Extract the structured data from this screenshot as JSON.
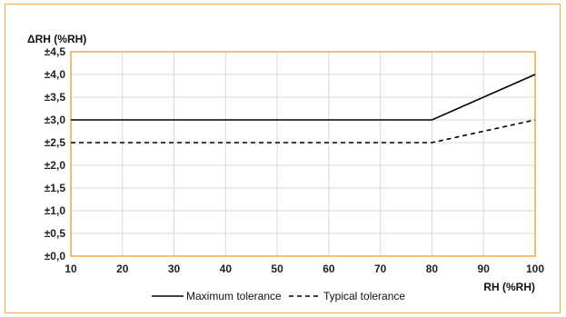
{
  "chart_data": {
    "type": "line",
    "ylabel": "ΔRH (%RH)",
    "xlabel": "RH (%RH)",
    "x": [
      10,
      80,
      100
    ],
    "xlim": [
      10,
      100
    ],
    "xticks": [
      10,
      20,
      30,
      40,
      50,
      60,
      70,
      80,
      90,
      100
    ],
    "ylim": [
      0,
      4.5
    ],
    "yticks": [
      0,
      0.5,
      1.0,
      1.5,
      2.0,
      2.5,
      3.0,
      3.5,
      4.0,
      4.5
    ],
    "ytick_labels": [
      "±0,0",
      "±0,5",
      "±1,0",
      "±1,5",
      "±2,0",
      "±2,5",
      "±3,0",
      "±3,5",
      "±4,0",
      "±4,5"
    ],
    "grid": true,
    "legend_position": "bottom",
    "series": [
      {
        "name": "Maximum tolerance",
        "values": [
          3.0,
          3.0,
          4.0
        ],
        "style": "solid",
        "color": "#000000"
      },
      {
        "name": "Typical tolerance",
        "values": [
          2.5,
          2.5,
          3.0
        ],
        "style": "dashed",
        "color": "#000000"
      }
    ],
    "colors": {
      "border": "#f0a84a",
      "grid": "#d9d9d9"
    }
  }
}
